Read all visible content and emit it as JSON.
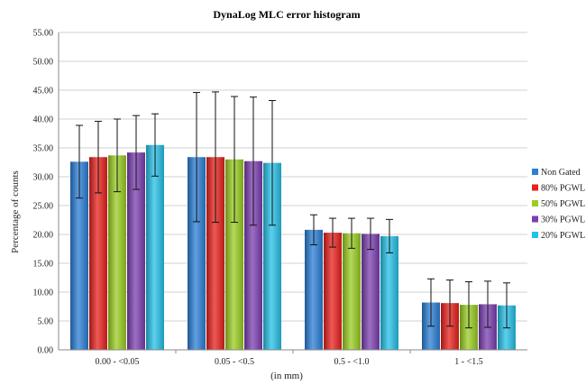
{
  "chart_data": {
    "type": "bar",
    "title": "DynaLog MLC error histogram",
    "xlabel": "(in mm)",
    "ylabel": "Percentage of counts",
    "ylim": [
      0,
      55
    ],
    "yticks": [
      "0.00",
      "5.00",
      "10.00",
      "15.00",
      "20.00",
      "25.00",
      "30.00",
      "35.00",
      "40.00",
      "45.00",
      "50.00",
      "55.00"
    ],
    "grid": true,
    "legend": "right",
    "categories": [
      "0.00 - <0.05",
      "0.05 - <0.5",
      "0.5 - <1.0",
      "1 - <1.5"
    ],
    "series": [
      {
        "name": "Non Gated",
        "color": "#2b7fd6",
        "values": [
          32.6,
          33.4,
          20.8,
          8.2
        ],
        "err": [
          6.3,
          11.2,
          2.6,
          4.1
        ]
      },
      {
        "name": "80% PGWL",
        "color": "#e8211c",
        "values": [
          33.4,
          33.4,
          20.3,
          8.1
        ],
        "err": [
          6.2,
          11.3,
          2.5,
          4.0
        ]
      },
      {
        "name": "50% PGWL",
        "color": "#9acd21",
        "values": [
          33.7,
          33.0,
          20.2,
          7.8
        ],
        "err": [
          6.3,
          10.9,
          2.6,
          4.0
        ]
      },
      {
        "name": "30% PGWL",
        "color": "#7b3fb0",
        "values": [
          34.2,
          32.7,
          20.1,
          7.9
        ],
        "err": [
          6.4,
          11.1,
          2.7,
          4.0
        ]
      },
      {
        "name": "20% PGWL",
        "color": "#25c1e8",
        "values": [
          35.5,
          32.4,
          19.7,
          7.7
        ],
        "err": [
          5.4,
          10.8,
          2.9,
          3.9
        ]
      }
    ]
  }
}
